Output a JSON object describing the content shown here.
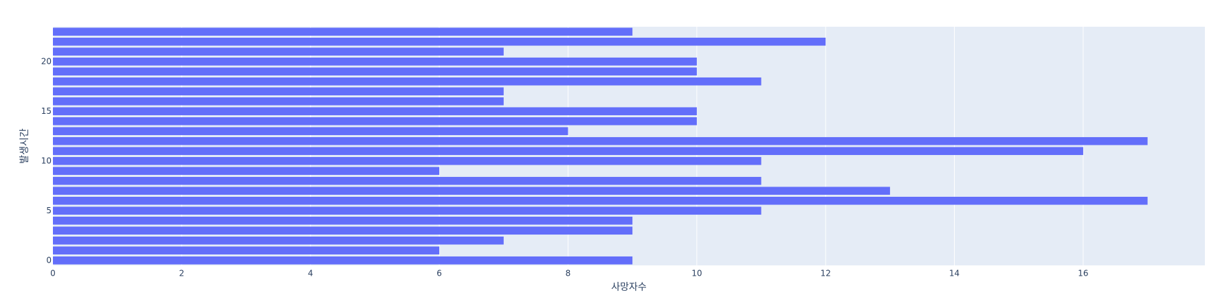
{
  "chart_data": {
    "type": "barh",
    "x_label": "사망자수",
    "y_label": "발생시간",
    "categories": [
      0,
      1,
      2,
      3,
      4,
      5,
      6,
      7,
      8,
      9,
      10,
      11,
      12,
      13,
      14,
      15,
      16,
      17,
      18,
      19,
      20,
      21,
      22,
      23
    ],
    "values": [
      9,
      6,
      7,
      9,
      9,
      11,
      17,
      13,
      11,
      6,
      11,
      16,
      17,
      8,
      10,
      10,
      7,
      7,
      11,
      10,
      10,
      7,
      12,
      9
    ],
    "color": "#636efa",
    "xlim": [
      0,
      17.89
    ],
    "xticks": [
      0,
      2,
      4,
      6,
      8,
      10,
      12,
      14,
      16
    ],
    "ylim": [
      -0.5,
      23.5
    ],
    "yticks": [
      0,
      5,
      10,
      15,
      20
    ],
    "grid": true
  }
}
